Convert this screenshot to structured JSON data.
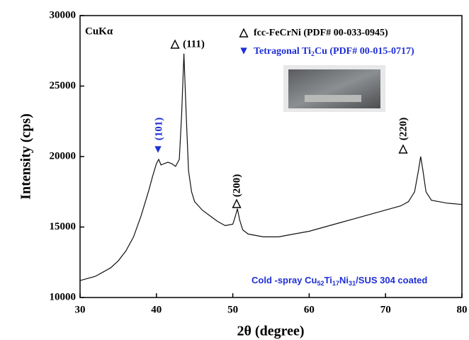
{
  "chart_data": {
    "type": "line",
    "x_label": "2θ (degree)",
    "y_label": "Intensity (cps)",
    "xlim": [
      30,
      80
    ],
    "xticks": [
      30,
      40,
      50,
      60,
      70,
      80
    ],
    "ylim": [
      10000,
      30000
    ],
    "yticks": [
      10000,
      15000,
      20000,
      25000,
      30000
    ],
    "color": "#111111",
    "x": [
      30,
      31,
      32,
      33,
      34,
      35,
      36,
      37,
      38,
      39,
      39.5,
      40,
      40.3,
      40.6,
      41,
      41.5,
      42,
      42.5,
      43,
      43.3,
      43.6,
      43.9,
      44.2,
      44.6,
      45,
      46,
      47,
      48,
      49,
      50,
      50.3,
      50.6,
      50.9,
      51.3,
      52,
      53,
      54,
      55,
      56,
      57,
      58,
      60,
      62,
      64,
      66,
      68,
      70,
      72,
      73,
      73.8,
      74.3,
      74.6,
      74.9,
      75.3,
      76,
      77,
      78,
      80
    ],
    "values": [
      11200,
      11350,
      11500,
      11800,
      12100,
      12600,
      13300,
      14300,
      15800,
      17600,
      18600,
      19500,
      19800,
      19400,
      19500,
      19600,
      19500,
      19300,
      19800,
      23000,
      27300,
      23000,
      19000,
      17500,
      16800,
      16200,
      15800,
      15400,
      15100,
      15200,
      15700,
      16300,
      15500,
      14800,
      14500,
      14400,
      14300,
      14300,
      14300,
      14400,
      14500,
      14700,
      15000,
      15300,
      15600,
      15900,
      16200,
      16500,
      16800,
      17500,
      19000,
      20000,
      19000,
      17500,
      16900,
      16800,
      16700,
      16600
    ],
    "annotations": [
      "CuKα",
      "△",
      "(111)",
      "▼",
      "(101)",
      "△",
      "(200)",
      "△",
      "(220)"
    ],
    "legend": [
      {
        "marker": "△",
        "parts": [
          "fcc-FeCrNi (PDF# 00-033-0945)"
        ]
      },
      {
        "marker": "▼",
        "parts": [
          "Tetragonal Ti",
          "2",
          "Cu (PDF# 00-015-0717)"
        ]
      }
    ],
    "sample_label": [
      "Cold -spray Cu",
      "52",
      "Ti",
      "17",
      "Ni",
      "31",
      "/SUS 304 coated"
    ]
  }
}
